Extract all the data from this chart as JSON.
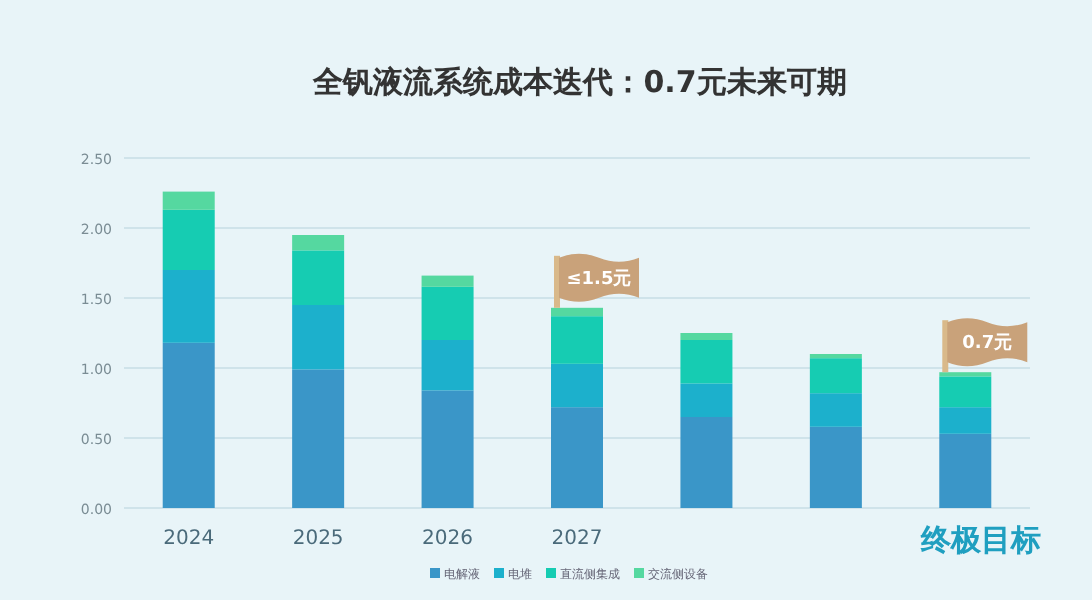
{
  "chart_data": {
    "type": "bar",
    "stacked": true,
    "title": "全钒液流系统成本迭代：0.7元未来可期",
    "categories": [
      "2024",
      "2025",
      "2026",
      "2027",
      null,
      null,
      "终极目标"
    ],
    "series": [
      {
        "name": "电解液",
        "color": "#3a96c8",
        "values": [
          1.18,
          0.99,
          0.84,
          0.72,
          0.65,
          0.58,
          0.53
        ]
      },
      {
        "name": "电堆",
        "color": "#1cb0cc",
        "values": [
          0.52,
          0.46,
          0.36,
          0.31,
          0.24,
          0.24,
          0.19
        ]
      },
      {
        "name": "直流侧集成",
        "color": "#16ccb2",
        "values": [
          0.43,
          0.39,
          0.38,
          0.34,
          0.31,
          0.25,
          0.22
        ]
      },
      {
        "name": "交流侧设备",
        "color": "#55d8a0",
        "values": [
          0.13,
          0.11,
          0.08,
          0.06,
          0.05,
          0.03,
          0.03
        ]
      }
    ],
    "ylim": [
      0,
      2.5
    ],
    "yticks": [
      {
        "value": 0,
        "label": "0.00"
      },
      {
        "value": 0.5,
        "label": "0.50"
      },
      {
        "value": 1,
        "label": "1.00"
      },
      {
        "value": 1.5,
        "label": "1.50"
      },
      {
        "value": 2,
        "label": "2.00"
      },
      {
        "value": 2.5,
        "label": "2.50"
      }
    ],
    "grid": "y",
    "legend": "bottom",
    "annotations": [
      {
        "text": "≤1.5元",
        "x": "2027",
        "y": 1.43
      },
      {
        "text": "0.7元",
        "x": "终极目标",
        "y": 0.97
      }
    ]
  }
}
